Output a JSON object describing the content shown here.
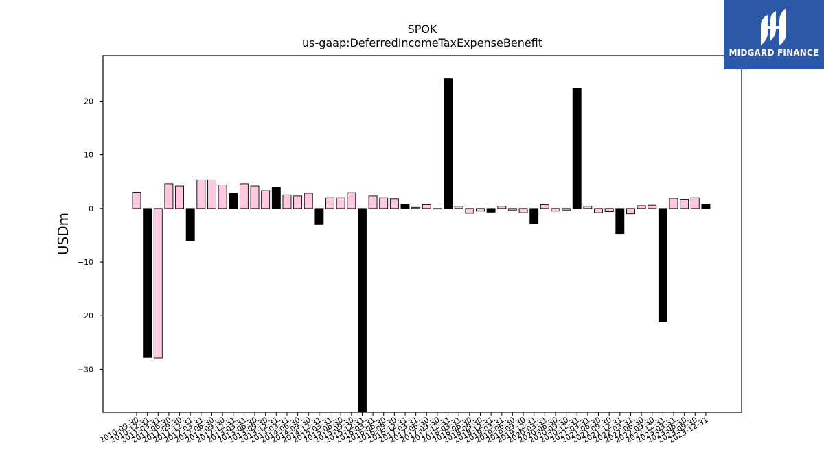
{
  "logo": {
    "text": "MIDGARD FINANCE",
    "icon": "midgard-logo-icon",
    "bg_color": "#2d58a8"
  },
  "chart_data": {
    "type": "bar",
    "title": "SPOK",
    "subtitle": "us-gaap:DeferredIncomeTaxExpenseBenefit",
    "ylabel": "USDm",
    "xlabel": "",
    "ylim": [
      -38,
      28.5
    ],
    "yticks": [
      -30,
      -20,
      -10,
      0,
      10,
      20
    ],
    "grid": false,
    "colors": {
      "quarterly": "#ffc8e0",
      "annual": "#000000",
      "edge": "#000000"
    },
    "categories": [
      "2010-09-30",
      "2010-12-31",
      "2011-03-31",
      "2011-06-30",
      "2011-09-30",
      "2011-12-31",
      "2012-03-31",
      "2012-06-30",
      "2012-09-30",
      "2012-12-31",
      "2013-03-31",
      "2013-06-30",
      "2013-09-30",
      "2013-12-31",
      "2014-03-31",
      "2014-06-30",
      "2014-09-30",
      "2014-12-31",
      "2015-03-31",
      "2015-06-30",
      "2015-09-30",
      "2015-12-31",
      "2016-03-31",
      "2016-06-30",
      "2016-09-30",
      "2016-12-31",
      "2017-03-31",
      "2017-06-30",
      "2017-09-30",
      "2017-12-31",
      "2018-03-31",
      "2018-06-30",
      "2018-09-30",
      "2018-12-31",
      "2019-03-31",
      "2019-06-30",
      "2019-09-30",
      "2019-12-31",
      "2020-03-31",
      "2020-06-30",
      "2020-09-30",
      "2020-12-31",
      "2021-03-31",
      "2021-06-30",
      "2021-09-30",
      "2021-12-31",
      "2022-03-31",
      "2022-06-30",
      "2022-09-30",
      "2022-12-31",
      "2023-03-31",
      "2023-06-30",
      "2023-09-30",
      "2023-12-31"
    ],
    "values": [
      3.0,
      -27.8,
      -27.9,
      4.6,
      4.2,
      -6.1,
      5.3,
      5.3,
      4.4,
      2.8,
      4.6,
      4.2,
      3.3,
      4.0,
      2.5,
      2.3,
      2.8,
      -3.0,
      2.0,
      2.0,
      2.9,
      -38.0,
      2.3,
      2.0,
      1.8,
      0.8,
      0.2,
      0.7,
      -0.1,
      24.2,
      0.4,
      -0.9,
      -0.5,
      -0.7,
      0.4,
      -0.3,
      -0.8,
      -2.8,
      0.7,
      -0.5,
      -0.3,
      22.4,
      0.4,
      -0.8,
      -0.6,
      -4.7,
      -1.0,
      0.5,
      0.6,
      -21.1,
      1.9,
      1.7,
      2.0,
      0.8
    ],
    "annual": [
      false,
      true,
      false,
      false,
      false,
      true,
      false,
      false,
      false,
      true,
      false,
      false,
      false,
      true,
      false,
      false,
      false,
      true,
      false,
      false,
      false,
      true,
      false,
      false,
      false,
      true,
      false,
      false,
      false,
      true,
      false,
      false,
      false,
      true,
      false,
      false,
      false,
      true,
      false,
      false,
      false,
      true,
      false,
      false,
      false,
      true,
      false,
      false,
      false,
      true,
      false,
      false,
      false,
      true
    ]
  }
}
